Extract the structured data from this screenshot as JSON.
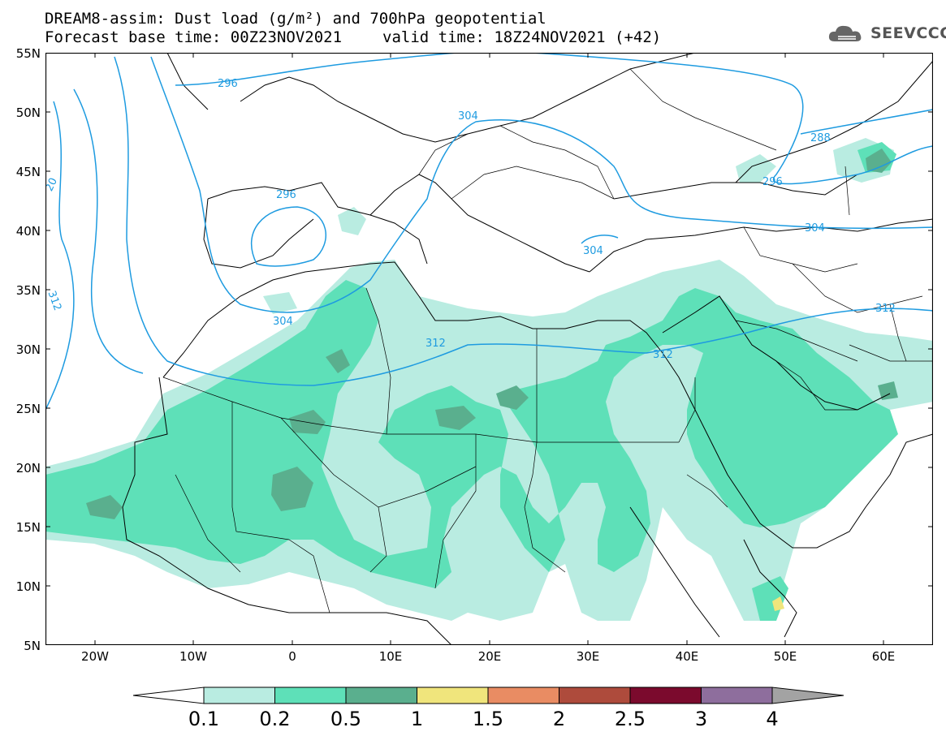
{
  "title": {
    "line1": "DREAM8-assim: Dust load (g/m²) and 700hPa geopotential",
    "line2_base": "Forecast base time: 00Z23NOV2021",
    "line2_valid": "valid time: 18Z24NOV2021 (+42)"
  },
  "logo": {
    "text": "SEEVCCC",
    "icon": "cloud-icon"
  },
  "map": {
    "extent": {
      "lon": [
        -25,
        65
      ],
      "lat": [
        5,
        55
      ]
    },
    "lat_ticks": [
      "55N",
      "50N",
      "45N",
      "40N",
      "35N",
      "30N",
      "25N",
      "20N",
      "15N",
      "10N",
      "5N"
    ],
    "lon_ticks": [
      "20W",
      "10W",
      "0",
      "10E",
      "20E",
      "30E",
      "40E",
      "50E",
      "60E"
    ],
    "contour_color": "#1e9be0",
    "contour_labels": [
      "296",
      "304",
      "288",
      "296",
      "296",
      "304",
      "304",
      "20",
      "312",
      "304",
      "312",
      "312",
      "312"
    ]
  },
  "colorbar": {
    "colors": [
      "#ffffff",
      "#b9ece1",
      "#5ee0b8",
      "#5aaf8e",
      "#f0e57c",
      "#e98c63",
      "#ae4b3c",
      "#7b0a2d",
      "#8e6e9d",
      "#a3a3a3"
    ],
    "labels": [
      "0.1",
      "0.2",
      "0.5",
      "1",
      "1.5",
      "2",
      "2.5",
      "3",
      "4"
    ]
  }
}
